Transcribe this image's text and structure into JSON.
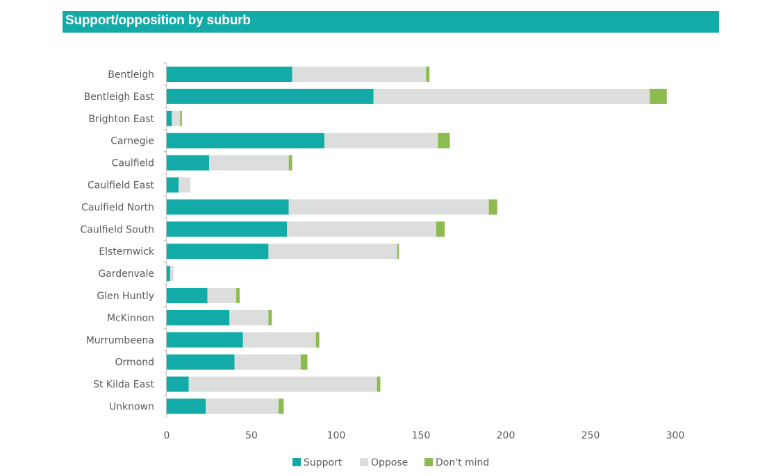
{
  "chart_data": {
    "type": "bar",
    "orientation": "horizontal",
    "stacked": true,
    "title": "Support/opposition by suburb",
    "categories": [
      "Bentleigh",
      "Bentleigh East",
      "Brighton East",
      "Carnegie",
      "Caulfield",
      "Caulfield East",
      "Caulfield North",
      "Caulfield South",
      "Elsternwick",
      "Gardenvale",
      "Glen Huntly",
      "McKinnon",
      "Murrumbeena",
      "Ormond",
      "St Kilda East",
      "Unknown"
    ],
    "series": [
      {
        "name": "Support",
        "color": "#13aba7",
        "values": [
          74,
          122,
          3,
          93,
          25,
          7,
          72,
          71,
          60,
          2,
          24,
          37,
          45,
          40,
          13,
          23
        ]
      },
      {
        "name": "Oppose",
        "color": "#dcdddd",
        "values": [
          79,
          163,
          5,
          67,
          47,
          7,
          118,
          88,
          76,
          2,
          17,
          23,
          43,
          39,
          111,
          43
        ]
      },
      {
        "name": "Don't mind",
        "color": "#8dbb4f",
        "values": [
          2,
          10,
          1,
          7,
          2,
          0,
          5,
          5,
          1,
          0,
          2,
          2,
          2,
          4,
          2,
          3
        ]
      }
    ],
    "xlim": [
      0,
      325
    ],
    "xticks": [
      0,
      50,
      100,
      150,
      200,
      250,
      300
    ],
    "grid": false,
    "legend_position": "bottom"
  }
}
